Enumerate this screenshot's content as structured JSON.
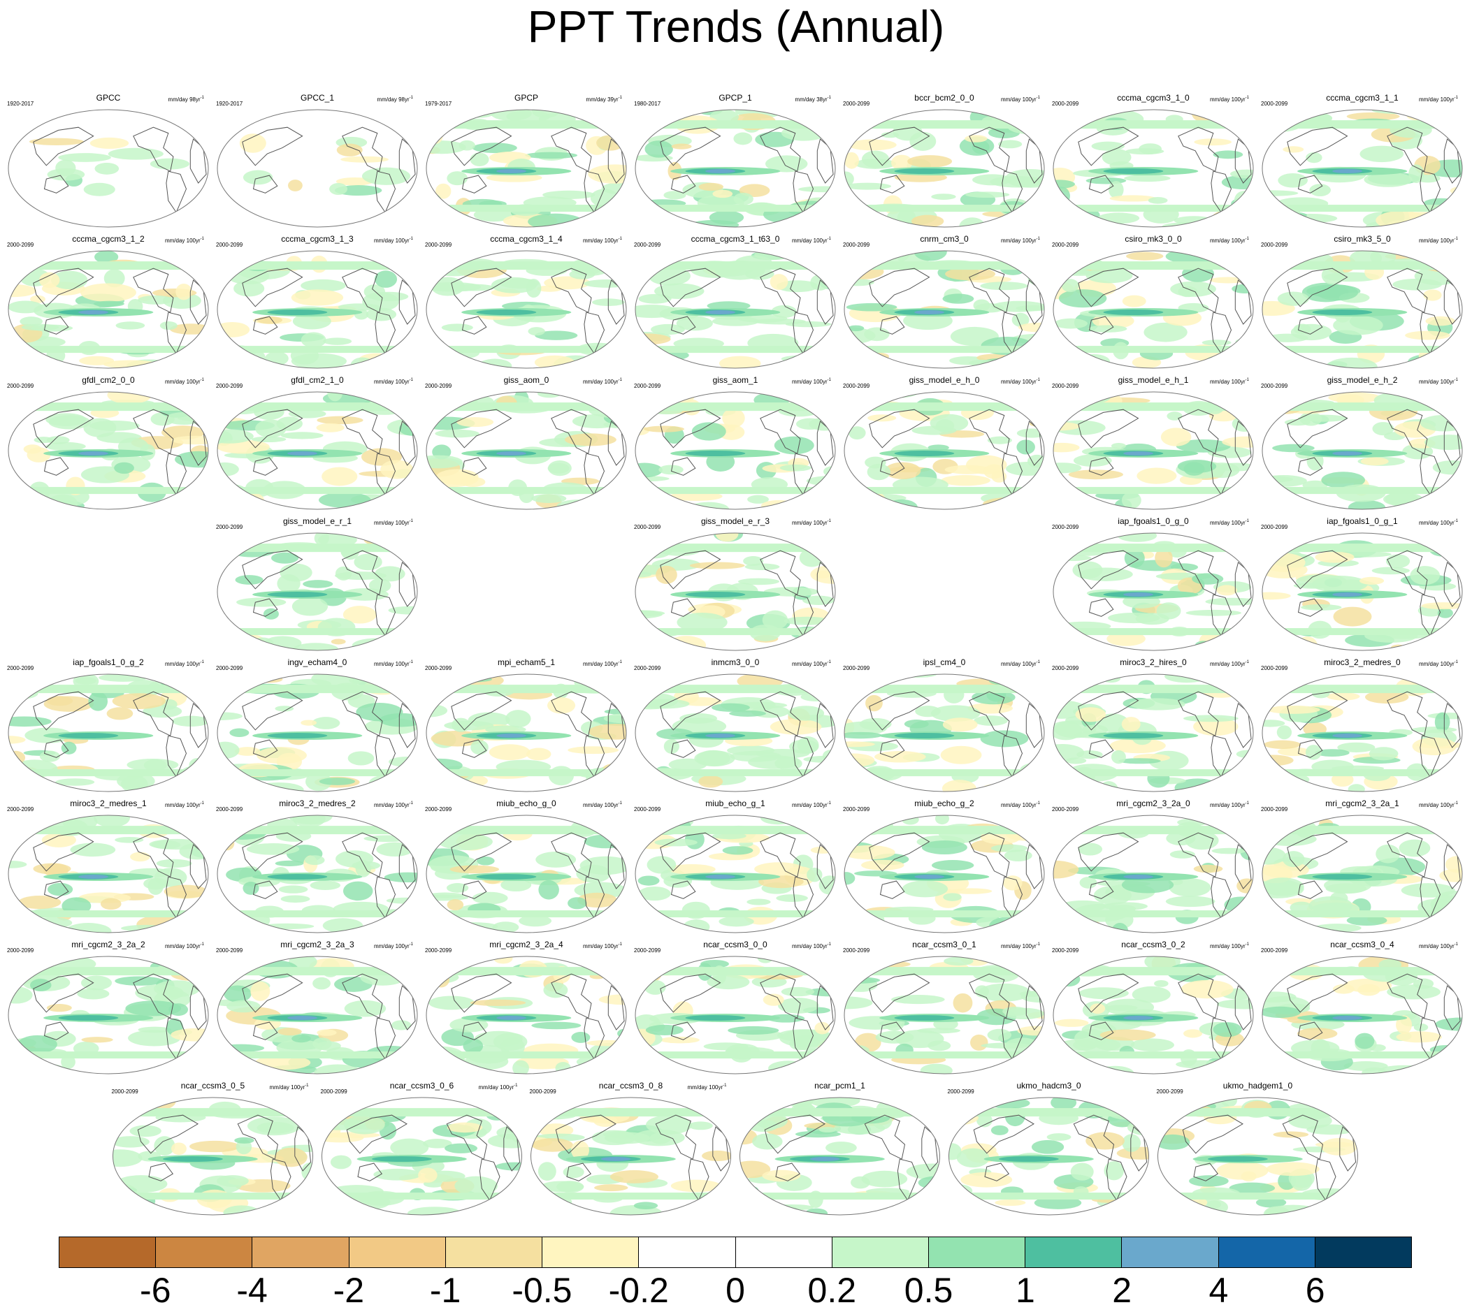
{
  "title": "PPT Trends (Annual)",
  "colors": {
    "land_outline": "#555555",
    "panel_outline": "#777777",
    "text": "#000000"
  },
  "chart_data": {
    "type": "heatmap",
    "title": "PPT Trends (Annual)",
    "description_units": "mm/day",
    "panels": [
      {
        "name": "GPCC",
        "period": "1920-2017",
        "units": "mm/day 98yr",
        "superscript": "-1",
        "row": 0,
        "col": 0
      },
      {
        "name": "GPCC_1",
        "period": "1920-2017",
        "units": "mm/day 98yr",
        "superscript": "-1",
        "row": 0,
        "col": 1
      },
      {
        "name": "GPCP",
        "period": "1979-2017",
        "units": "mm/day 39yr",
        "superscript": "-1",
        "row": 0,
        "col": 2
      },
      {
        "name": "GPCP_1",
        "period": "1980-2017",
        "units": "mm/day 38yr",
        "superscript": "-1",
        "row": 0,
        "col": 3
      },
      {
        "name": "bccr_bcm2_0_0",
        "period": "2000-2099",
        "units": "mm/day 100yr",
        "superscript": "-1",
        "row": 0,
        "col": 4
      },
      {
        "name": "cccma_cgcm3_1_0",
        "period": "2000-2099",
        "units": "mm/day 100yr",
        "superscript": "-1",
        "row": 0,
        "col": 5
      },
      {
        "name": "cccma_cgcm3_1_1",
        "period": "2000-2099",
        "units": "mm/day 100yr",
        "superscript": "-1",
        "row": 0,
        "col": 6
      },
      {
        "name": "cccma_cgcm3_1_2",
        "period": "2000-2099",
        "units": "mm/day 100yr",
        "superscript": "-1",
        "row": 1,
        "col": 0
      },
      {
        "name": "cccma_cgcm3_1_3",
        "period": "2000-2099",
        "units": "mm/day 100yr",
        "superscript": "-1",
        "row": 1,
        "col": 1
      },
      {
        "name": "cccma_cgcm3_1_4",
        "period": "2000-2099",
        "units": "mm/day 100yr",
        "superscript": "-1",
        "row": 1,
        "col": 2
      },
      {
        "name": "cccma_cgcm3_1_t63_0",
        "period": "2000-2099",
        "units": "mm/day 100yr",
        "superscript": "-1",
        "row": 1,
        "col": 3
      },
      {
        "name": "cnrm_cm3_0",
        "period": "2000-2099",
        "units": "mm/day 100yr",
        "superscript": "-1",
        "row": 1,
        "col": 4
      },
      {
        "name": "csiro_mk3_0_0",
        "period": "2000-2099",
        "units": "mm/day 100yr",
        "superscript": "-1",
        "row": 1,
        "col": 5
      },
      {
        "name": "csiro_mk3_5_0",
        "period": "2000-2099",
        "units": "mm/day 100yr",
        "superscript": "-1",
        "row": 1,
        "col": 6
      },
      {
        "name": "gfdl_cm2_0_0",
        "period": "2000-2099",
        "units": "mm/day 100yr",
        "superscript": "-1",
        "row": 2,
        "col": 0
      },
      {
        "name": "gfdl_cm2_1_0",
        "period": "2000-2099",
        "units": "mm/day 100yr",
        "superscript": "-1",
        "row": 2,
        "col": 1
      },
      {
        "name": "giss_aom_0",
        "period": "2000-2099",
        "units": "mm/day 100yr",
        "superscript": "-1",
        "row": 2,
        "col": 2
      },
      {
        "name": "giss_aom_1",
        "period": "2000-2099",
        "units": "mm/day 100yr",
        "superscript": "-1",
        "row": 2,
        "col": 3
      },
      {
        "name": "giss_model_e_h_0",
        "period": "2000-2099",
        "units": "mm/day 100yr",
        "superscript": "-1",
        "row": 2,
        "col": 4
      },
      {
        "name": "giss_model_e_h_1",
        "period": "2000-2099",
        "units": "mm/day 100yr",
        "superscript": "-1",
        "row": 2,
        "col": 5
      },
      {
        "name": "giss_model_e_h_2",
        "period": "2000-2099",
        "units": "mm/day 100yr",
        "superscript": "-1",
        "row": 2,
        "col": 6
      },
      {
        "name": "giss_model_e_r_1",
        "period": "2000-2099",
        "units": "mm/day 100yr",
        "superscript": "-1",
        "row": 3,
        "col": 1
      },
      {
        "name": "giss_model_e_r_3",
        "period": "2000-2099",
        "units": "mm/day 100yr",
        "superscript": "-1",
        "row": 3,
        "col": 3
      },
      {
        "name": "iap_fgoals1_0_g_0",
        "period": "2000-2099",
        "units": "mm/day 100yr",
        "superscript": "-1",
        "row": 3,
        "col": 5
      },
      {
        "name": "iap_fgoals1_0_g_1",
        "period": "2000-2099",
        "units": "mm/day 100yr",
        "superscript": "-1",
        "row": 3,
        "col": 6
      },
      {
        "name": "iap_fgoals1_0_g_2",
        "period": "2000-2099",
        "units": "mm/day 100yr",
        "superscript": "-1",
        "row": 4,
        "col": 0
      },
      {
        "name": "ingv_echam4_0",
        "period": "2000-2099",
        "units": "mm/day 100yr",
        "superscript": "-1",
        "row": 4,
        "col": 1
      },
      {
        "name": "mpi_echam5_1",
        "period": "2000-2099",
        "units": "mm/day 100yr",
        "superscript": "-1",
        "row": 4,
        "col": 2
      },
      {
        "name": "inmcm3_0_0",
        "period": "2000-2099",
        "units": "mm/day 100yr",
        "superscript": "-1",
        "row": 4,
        "col": 3
      },
      {
        "name": "ipsl_cm4_0",
        "period": "2000-2099",
        "units": "mm/day 100yr",
        "superscript": "-1",
        "row": 4,
        "col": 4
      },
      {
        "name": "miroc3_2_hires_0",
        "period": "2000-2099",
        "units": "mm/day 100yr",
        "superscript": "-1",
        "row": 4,
        "col": 5
      },
      {
        "name": "miroc3_2_medres_0",
        "period": "2000-2099",
        "units": "mm/day 100yr",
        "superscript": "-1",
        "row": 4,
        "col": 6
      },
      {
        "name": "miroc3_2_medres_1",
        "period": "2000-2099",
        "units": "mm/day 100yr",
        "superscript": "-1",
        "row": 5,
        "col": 0
      },
      {
        "name": "miroc3_2_medres_2",
        "period": "2000-2099",
        "units": "mm/day 100yr",
        "superscript": "-1",
        "row": 5,
        "col": 1
      },
      {
        "name": "miub_echo_g_0",
        "period": "2000-2099",
        "units": "mm/day 100yr",
        "superscript": "-1",
        "row": 5,
        "col": 2
      },
      {
        "name": "miub_echo_g_1",
        "period": "2000-2099",
        "units": "mm/day 100yr",
        "superscript": "-1",
        "row": 5,
        "col": 3
      },
      {
        "name": "miub_echo_g_2",
        "period": "2000-2099",
        "units": "mm/day 100yr",
        "superscript": "-1",
        "row": 5,
        "col": 4
      },
      {
        "name": "mri_cgcm2_3_2a_0",
        "period": "2000-2099",
        "units": "mm/day 100yr",
        "superscript": "-1",
        "row": 5,
        "col": 5
      },
      {
        "name": "mri_cgcm2_3_2a_1",
        "period": "2000-2099",
        "units": "mm/day 100yr",
        "superscript": "-1",
        "row": 5,
        "col": 6
      },
      {
        "name": "mri_cgcm2_3_2a_2",
        "period": "2000-2099",
        "units": "mm/day 100yr",
        "superscript": "-1",
        "row": 6,
        "col": 0
      },
      {
        "name": "mri_cgcm2_3_2a_3",
        "period": "2000-2099",
        "units": "mm/day 100yr",
        "superscript": "-1",
        "row": 6,
        "col": 1
      },
      {
        "name": "mri_cgcm2_3_2a_4",
        "period": "2000-2099",
        "units": "mm/day 100yr",
        "superscript": "-1",
        "row": 6,
        "col": 2
      },
      {
        "name": "ncar_ccsm3_0_0",
        "period": "2000-2099",
        "units": "mm/day 100yr",
        "superscript": "-1",
        "row": 6,
        "col": 3
      },
      {
        "name": "ncar_ccsm3_0_1",
        "period": "2000-2099",
        "units": "mm/day 100yr",
        "superscript": "-1",
        "row": 6,
        "col": 4
      },
      {
        "name": "ncar_ccsm3_0_2",
        "period": "2000-2099",
        "units": "mm/day 100yr",
        "superscript": "-1",
        "row": 6,
        "col": 5
      },
      {
        "name": "ncar_ccsm3_0_4",
        "period": "2000-2099",
        "units": "mm/day 100yr",
        "superscript": "-1",
        "row": 6,
        "col": 6
      },
      {
        "name": "ncar_ccsm3_0_5",
        "period": "2000-2099",
        "units": "mm/day 100yr",
        "superscript": "-1",
        "row": 7,
        "col": 0.5
      },
      {
        "name": "ncar_ccsm3_0_6",
        "period": "2000-2099",
        "units": "mm/day 100yr",
        "superscript": "-1",
        "row": 7,
        "col": 1.5
      },
      {
        "name": "ncar_ccsm3_0_8",
        "period": "2000-2099",
        "units": "mm/day 100yr",
        "superscript": "-1",
        "row": 7,
        "col": 2.5
      },
      {
        "name": "ncar_pcm1_1",
        "period": "",
        "units": "",
        "superscript": "",
        "row": 7,
        "col": 3.5
      },
      {
        "name": "ukmo_hadcm3_0",
        "period": "2000-2099",
        "units": "",
        "superscript": "",
        "row": 7,
        "col": 4.5
      },
      {
        "name": "ukmo_hadgem1_0",
        "period": "2000-2099",
        "units": "",
        "superscript": "",
        "row": 7,
        "col": 5.5
      }
    ],
    "colorbar": {
      "levels": [
        "-6",
        "-4",
        "-2",
        "-1",
        "-0.5",
        "-0.2",
        "0",
        "0.2",
        "0.5",
        "1",
        "2",
        "4",
        "6"
      ],
      "colors": [
        "#b5692a",
        "#cc8641",
        "#e0a562",
        "#f2c985",
        "#f5e0a0",
        "#fff5c0",
        "#ffffff",
        "#ffffff",
        "#c6f6c9",
        "#93e3b0",
        "#4ebfa0",
        "#6aa8cc",
        "#1466a8",
        "#023a5e"
      ]
    }
  }
}
